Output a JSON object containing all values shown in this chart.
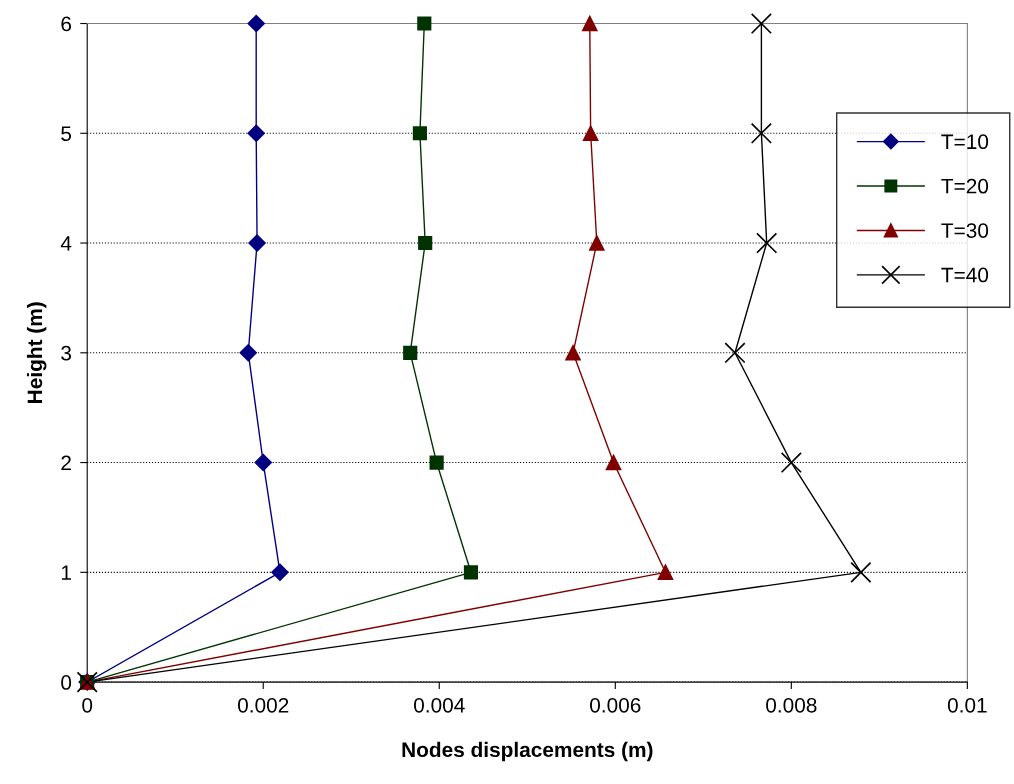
{
  "chart_data": {
    "type": "line",
    "xlabel": "Nodes displacements (m)",
    "ylabel": "Height (m)",
    "xlim": [
      0,
      0.01
    ],
    "ylim": [
      0,
      6
    ],
    "xticks": [
      0,
      0.002,
      0.004,
      0.006,
      0.008,
      0.01
    ],
    "yticks": [
      0,
      1,
      2,
      3,
      4,
      5,
      6
    ],
    "grid": "y",
    "legend": "top right",
    "line_style": "solid",
    "series": [
      {
        "name": "T=10",
        "color": "#000080",
        "marker": "diamond",
        "x": [
          0,
          0.00219,
          0.002,
          0.00183,
          0.00193,
          0.00192,
          0.00192
        ],
        "values": [
          0,
          1,
          2,
          3,
          4,
          5,
          6
        ]
      },
      {
        "name": "T=20",
        "color": "#003300",
        "marker": "square",
        "x": [
          0,
          0.00436,
          0.00397,
          0.00367,
          0.00384,
          0.00378,
          0.00383
        ],
        "values": [
          0,
          1,
          2,
          3,
          4,
          5,
          6
        ]
      },
      {
        "name": "T=30",
        "color": "#800000",
        "marker": "triangle",
        "x": [
          0,
          0.00657,
          0.00598,
          0.00552,
          0.00579,
          0.00572,
          0.00571
        ],
        "values": [
          0,
          1,
          2,
          3,
          4,
          5,
          6
        ]
      },
      {
        "name": "T=40",
        "color": "#000000",
        "marker": "cross",
        "x": [
          0,
          0.00879,
          0.008,
          0.00736,
          0.00772,
          0.00766,
          0.00766
        ],
        "values": [
          0,
          1,
          2,
          3,
          4,
          5,
          6
        ]
      }
    ]
  }
}
